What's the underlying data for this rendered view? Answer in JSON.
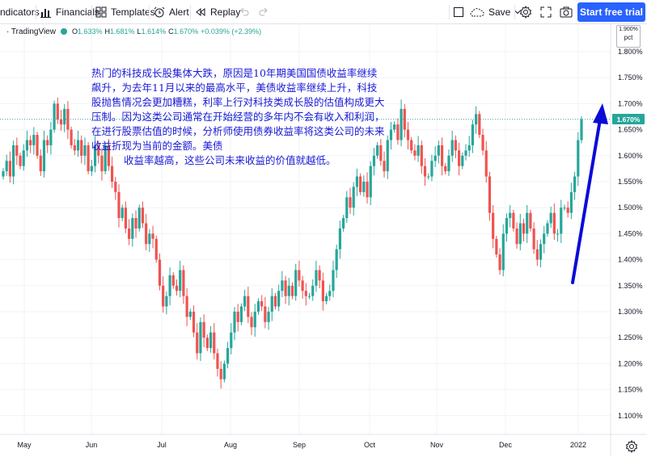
{
  "toolbar": {
    "indicators_label": "ndicators",
    "financials_label": "Financials",
    "templates_label": "Templates",
    "alert_label": "Alert",
    "replay_label": "Replay",
    "save_label": "Save",
    "trial_label": "Start free trial"
  },
  "legend": {
    "symbol": "· TradingView",
    "open_label": "O",
    "open_value": "1.633%",
    "high_label": "H",
    "high_value": "1.681%",
    "low_label": "L",
    "low_value": "1.614%",
    "close_label": "C",
    "close_value": "1.670%",
    "change_value": "+0.039% (+2.39%)"
  },
  "price_scale": {
    "unit_top": "1.900%",
    "unit_label": "pct",
    "current_price": "1.670%"
  },
  "annotation": {
    "text": "热门的科技成长股集体大跌，原因是10年期美国国债收益率继续飙升，为去年11月以来的最高水平，美债收益率继续上升，科技股抛售情况会更加糟糕，利率上行对科技类成长股的估值构成更大压制。因为这类公司通常在开始经营的多年内不会有收入和利润，在进行股票估值的时候，分析师使用债券收益率将这类公司的未来收益折现为当前的金额。美债",
    "text2": "收益率越高，这些公司未来收益的价值就越低。"
  },
  "colors": {
    "up": "#26a69a",
    "down": "#ef5350",
    "accent": "#2962ff",
    "arrow": "#0b0bd8",
    "annotation_text": "#1a1ad6"
  },
  "chart_data": {
    "type": "candlestick",
    "y_ticks": [
      "1.800%",
      "1.750%",
      "1.700%",
      "1.650%",
      "1.600%",
      "1.550%",
      "1.500%",
      "1.450%",
      "1.400%",
      "1.350%",
      "1.300%",
      "1.250%",
      "1.200%",
      "1.150%",
      "1.100%"
    ],
    "ylim": [
      1.07,
      1.92
    ],
    "x_labels": [
      "May",
      "Jun",
      "Jul",
      "Aug",
      "Sep",
      "Oct",
      "Nov",
      "Dec",
      "2022"
    ],
    "last_price": 1.67,
    "closes": [
      1.57,
      1.59,
      1.56,
      1.62,
      1.6,
      1.58,
      1.61,
      1.63,
      1.62,
      1.64,
      1.6,
      1.57,
      1.63,
      1.62,
      1.65,
      1.7,
      1.67,
      1.66,
      1.69,
      1.65,
      1.62,
      1.61,
      1.63,
      1.6,
      1.62,
      1.57,
      1.58,
      1.62,
      1.6,
      1.57,
      1.62,
      1.58,
      1.55,
      1.53,
      1.48,
      1.5,
      1.46,
      1.44,
      1.48,
      1.46,
      1.5,
      1.47,
      1.43,
      1.45,
      1.44,
      1.4,
      1.35,
      1.31,
      1.33,
      1.37,
      1.35,
      1.34,
      1.38,
      1.33,
      1.29,
      1.3,
      1.26,
      1.22,
      1.28,
      1.25,
      1.23,
      1.26,
      1.22,
      1.19,
      1.17,
      1.2,
      1.23,
      1.26,
      1.3,
      1.28,
      1.31,
      1.33,
      1.29,
      1.27,
      1.3,
      1.32,
      1.31,
      1.28,
      1.3,
      1.33,
      1.31,
      1.34,
      1.36,
      1.33,
      1.35,
      1.33,
      1.38,
      1.36,
      1.34,
      1.33,
      1.33,
      1.35,
      1.38,
      1.36,
      1.32,
      1.33,
      1.34,
      1.38,
      1.42,
      1.46,
      1.48,
      1.52,
      1.5,
      1.54,
      1.56,
      1.53,
      1.55,
      1.52,
      1.58,
      1.6,
      1.62,
      1.59,
      1.57,
      1.63,
      1.65,
      1.66,
      1.63,
      1.69,
      1.65,
      1.63,
      1.61,
      1.6,
      1.62,
      1.58,
      1.56,
      1.56,
      1.59,
      1.6,
      1.62,
      1.58,
      1.57,
      1.6,
      1.63,
      1.61,
      1.58,
      1.6,
      1.61,
      1.62,
      1.66,
      1.68,
      1.64,
      1.61,
      1.56,
      1.49,
      1.44,
      1.41,
      1.38,
      1.45,
      1.48,
      1.49,
      1.46,
      1.43,
      1.47,
      1.45,
      1.49,
      1.46,
      1.42,
      1.4,
      1.43,
      1.45,
      1.47,
      1.49,
      1.45,
      1.45,
      1.5,
      1.5,
      1.49,
      1.53,
      1.56,
      1.63,
      1.67
    ]
  }
}
